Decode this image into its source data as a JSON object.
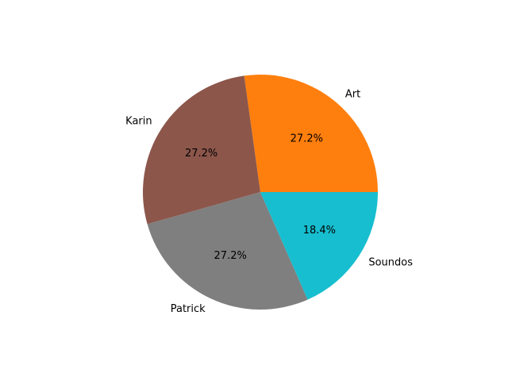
{
  "chart_data": {
    "type": "pie",
    "labels": [
      "Art",
      "Karin",
      "Patrick",
      "Soundos"
    ],
    "values": [
      27.2,
      27.2,
      27.2,
      18.4
    ],
    "percent_labels": [
      "27.2%",
      "27.2%",
      "27.2%",
      "18.4%"
    ],
    "colors": [
      "#ff7f0e",
      "#8c564b",
      "#7f7f7f",
      "#17becf"
    ],
    "start_angle_deg": 0,
    "direction": "counterclockwise",
    "legend": "none"
  }
}
